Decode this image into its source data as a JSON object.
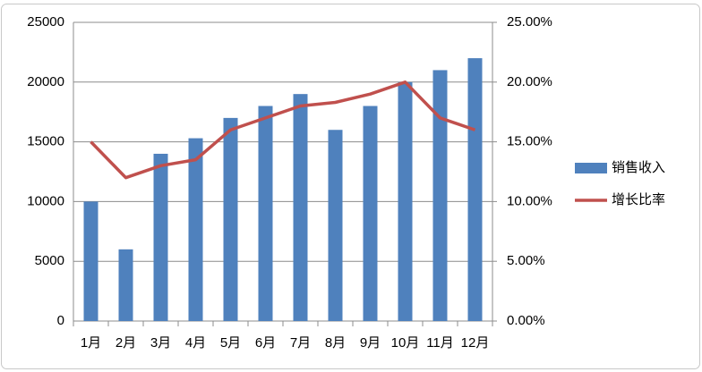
{
  "chart_data": {
    "type": "bar-line",
    "categories": [
      "1月",
      "2月",
      "3月",
      "4月",
      "5月",
      "6月",
      "7月",
      "8月",
      "9月",
      "10月",
      "11月",
      "12月"
    ],
    "series": [
      {
        "name": "销售收入",
        "type": "bar",
        "color": "#4f81bd",
        "values": [
          10000,
          6000,
          14000,
          15300,
          17000,
          18000,
          19000,
          16000,
          18000,
          20000,
          21000,
          22000
        ]
      },
      {
        "name": "增长比率",
        "type": "line",
        "axis": "y2",
        "color": "#c0504d",
        "values": [
          15,
          12,
          13,
          13.5,
          16,
          17,
          18,
          18.3,
          19,
          20,
          17,
          16
        ]
      }
    ],
    "ylim": [
      0,
      25000
    ],
    "yticks": [
      0,
      5000,
      10000,
      15000,
      20000,
      25000
    ],
    "y2lim": [
      0,
      25
    ],
    "y2ticks": [
      {
        "value": 0,
        "label": "0.00%"
      },
      {
        "value": 5,
        "label": "5.00%"
      },
      {
        "value": 10,
        "label": "10.00%"
      },
      {
        "value": 15,
        "label": "15.00%"
      },
      {
        "value": 20,
        "label": "20.00%"
      },
      {
        "value": 25,
        "label": "25.00%"
      }
    ],
    "grid": true,
    "legend": "right"
  }
}
